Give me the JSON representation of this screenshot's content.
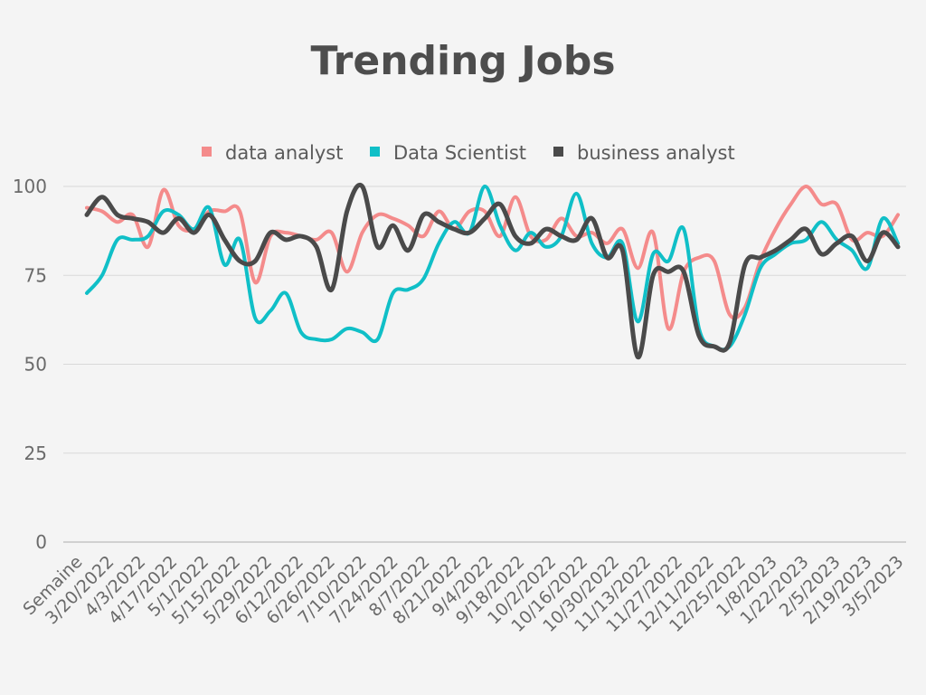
{
  "chart_data": {
    "type": "line",
    "title": "Trending Jobs",
    "x_tick_labels": [
      "Semaine",
      "3/20/2022",
      "4/3/2022",
      "4/17/2022",
      "5/1/2022",
      "5/15/2022",
      "5/29/2022",
      "6/12/2022",
      "6/26/2022",
      "7/10/2022",
      "7/24/2022",
      "8/7/2022",
      "8/21/2022",
      "9/4/2022",
      "9/18/2022",
      "10/2/2022",
      "10/16/2022",
      "10/30/2022",
      "11/13/2022",
      "11/27/2022",
      "12/11/2022",
      "12/25/2022",
      "1/8/2023",
      "1/22/2023",
      "2/5/2023",
      "2/19/2023",
      "3/5/2023"
    ],
    "y_ticks": [
      0,
      25,
      50,
      75,
      100
    ],
    "ylim": [
      0,
      100
    ],
    "grid": true,
    "legend_position": "top",
    "series": [
      {
        "name": "data analyst",
        "color": "#f48b8b",
        "values": [
          94,
          93,
          90,
          92,
          83,
          99,
          89,
          88,
          93,
          93,
          93,
          73,
          86,
          87,
          86,
          85,
          87,
          76,
          87,
          92,
          91,
          89,
          86,
          93,
          88,
          93,
          93,
          86,
          97,
          86,
          85,
          91,
          86,
          87,
          84,
          88,
          77,
          87,
          60,
          76,
          80,
          79,
          64,
          66,
          79,
          88,
          95,
          100,
          95,
          95,
          85,
          87,
          86,
          92
        ]
      },
      {
        "name": "Data Scientist",
        "color": "#10bfc7",
        "values": [
          70,
          75,
          85,
          85,
          86,
          93,
          92,
          88,
          94,
          78,
          85,
          63,
          65,
          70,
          59,
          57,
          57,
          60,
          59,
          57,
          70,
          71,
          74,
          84,
          90,
          87,
          100,
          89,
          82,
          87,
          83,
          86,
          98,
          84,
          80,
          84,
          62,
          81,
          79,
          88,
          60,
          55,
          55,
          64,
          77,
          81,
          84,
          85,
          90,
          85,
          82,
          77,
          91,
          84
        ]
      },
      {
        "name": "business analyst",
        "color": "#4a4a4a",
        "values": [
          92,
          97,
          92,
          91,
          90,
          87,
          91,
          87,
          92,
          85,
          79,
          79,
          87,
          85,
          86,
          83,
          71,
          93,
          100,
          83,
          89,
          82,
          92,
          90,
          88,
          87,
          91,
          95,
          86,
          84,
          88,
          86,
          85,
          91,
          80,
          82,
          52,
          75,
          76,
          76,
          58,
          55,
          56,
          78,
          80,
          82,
          85,
          88,
          81,
          84,
          86,
          79,
          87,
          83
        ]
      }
    ]
  }
}
